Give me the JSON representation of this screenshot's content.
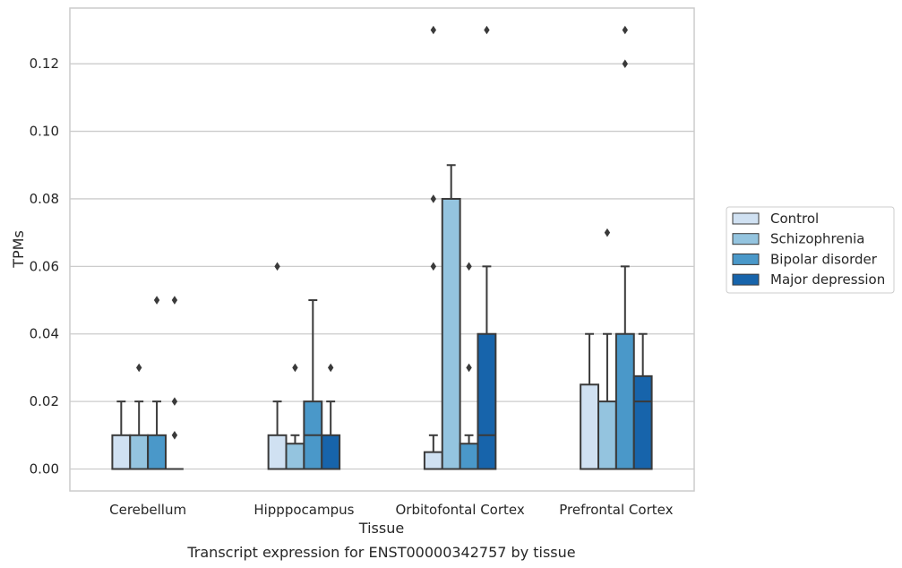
{
  "caption": "Transcript expression for ENST00000342757 by tissue",
  "chart_data": {
    "type": "boxplot",
    "xlabel": "Tissue",
    "ylabel": "TPMs",
    "ylim": [
      -0.0065,
      0.1365
    ],
    "yticks": [
      0.0,
      0.02,
      0.04,
      0.06,
      0.08,
      0.1,
      0.12
    ],
    "ytick_labels": [
      "0.00",
      "0.02",
      "0.04",
      "0.06",
      "0.08",
      "0.10",
      "0.12"
    ],
    "grid": true,
    "legend_placement": "outside-right",
    "categories": [
      "Cerebellum",
      "Hipppocampus",
      "Orbitofontal Cortex",
      "Prefrontal Cortex"
    ],
    "series": [
      {
        "name": "Control",
        "color": "#d0e1f2",
        "boxes": [
          {
            "min": 0.0,
            "q1": 0.0,
            "median": 0.0,
            "q3": 0.01,
            "max": 0.02,
            "outliers": []
          },
          {
            "min": 0.0,
            "q1": 0.0,
            "median": 0.0,
            "q3": 0.01,
            "max": 0.02,
            "outliers": [
              0.06
            ]
          },
          {
            "min": 0.0,
            "q1": 0.0,
            "median": 0.0,
            "q3": 0.005,
            "max": 0.01,
            "outliers": [
              0.06,
              0.08,
              0.13
            ]
          },
          {
            "min": 0.0,
            "q1": 0.0,
            "median": 0.0,
            "q3": 0.025,
            "max": 0.04,
            "outliers": []
          }
        ]
      },
      {
        "name": "Schizophrenia",
        "color": "#94c4df",
        "boxes": [
          {
            "min": 0.0,
            "q1": 0.0,
            "median": 0.0,
            "q3": 0.01,
            "max": 0.02,
            "outliers": [
              0.03
            ]
          },
          {
            "min": 0.0,
            "q1": 0.0,
            "median": 0.0,
            "q3": 0.0075,
            "max": 0.01,
            "outliers": [
              0.03
            ]
          },
          {
            "min": 0.0,
            "q1": 0.0,
            "median": 0.0,
            "q3": 0.08,
            "max": 0.09,
            "outliers": []
          },
          {
            "min": 0.0,
            "q1": 0.0,
            "median": 0.0,
            "q3": 0.02,
            "max": 0.04,
            "outliers": [
              0.07
            ]
          }
        ]
      },
      {
        "name": "Bipolar disorder",
        "color": "#4a98c9",
        "boxes": [
          {
            "min": 0.0,
            "q1": 0.0,
            "median": 0.0,
            "q3": 0.01,
            "max": 0.02,
            "outliers": [
              0.05
            ]
          },
          {
            "min": 0.0,
            "q1": 0.0,
            "median": 0.01,
            "q3": 0.02,
            "max": 0.05,
            "outliers": []
          },
          {
            "min": 0.0,
            "q1": 0.0,
            "median": 0.0,
            "q3": 0.0075,
            "max": 0.01,
            "outliers": [
              0.03,
              0.06
            ]
          },
          {
            "min": 0.0,
            "q1": 0.0,
            "median": 0.0,
            "q3": 0.04,
            "max": 0.06,
            "outliers": [
              0.12,
              0.13
            ]
          }
        ]
      },
      {
        "name": "Major depression",
        "color": "#1764ab",
        "boxes": [
          {
            "min": 0.0,
            "q1": 0.0,
            "median": 0.0,
            "q3": 0.0,
            "max": 0.0,
            "outliers": [
              0.01,
              0.02,
              0.05
            ]
          },
          {
            "min": 0.0,
            "q1": 0.0,
            "median": 0.0,
            "q3": 0.01,
            "max": 0.02,
            "outliers": [
              0.03
            ]
          },
          {
            "min": 0.0,
            "q1": 0.0,
            "median": 0.01,
            "q3": 0.04,
            "max": 0.06,
            "outliers": [
              0.13
            ]
          },
          {
            "min": 0.0,
            "q1": 0.0,
            "median": 0.02,
            "q3": 0.0275,
            "max": 0.04,
            "outliers": []
          }
        ]
      }
    ]
  }
}
